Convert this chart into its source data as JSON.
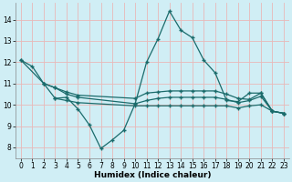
{
  "xlabel": "Humidex (Indice chaleur)",
  "background_color": "#d0eef5",
  "grid_color": "#e8b8b8",
  "line_color": "#1a6b6b",
  "xlim": [
    -0.5,
    23.5
  ],
  "ylim": [
    7.5,
    14.8
  ],
  "yticks": [
    8,
    9,
    10,
    11,
    12,
    13,
    14
  ],
  "xticks": [
    0,
    1,
    2,
    3,
    4,
    5,
    6,
    7,
    8,
    9,
    10,
    11,
    12,
    13,
    14,
    15,
    16,
    17,
    18,
    19,
    20,
    21,
    22,
    23
  ],
  "series": [
    {
      "x": [
        0,
        1,
        2,
        3,
        4,
        5,
        6,
        7,
        8,
        9,
        10,
        11,
        12,
        13,
        14,
        15,
        16,
        17,
        18,
        19,
        20,
        21,
        22,
        23
      ],
      "y": [
        12.1,
        11.8,
        11.0,
        10.3,
        10.35,
        9.8,
        9.05,
        7.95,
        8.35,
        8.8,
        10.05,
        12.0,
        13.1,
        14.4,
        13.5,
        13.15,
        12.1,
        11.5,
        10.2,
        10.15,
        10.55,
        10.55,
        9.7,
        9.6
      ]
    },
    {
      "x": [
        0,
        2,
        3,
        4,
        5,
        10,
        11,
        12,
        13,
        14,
        15,
        16,
        17,
        18,
        19,
        20,
        21,
        22,
        23
      ],
      "y": [
        12.1,
        11.0,
        10.8,
        10.6,
        10.45,
        10.3,
        10.55,
        10.6,
        10.65,
        10.65,
        10.65,
        10.65,
        10.65,
        10.5,
        10.3,
        10.25,
        10.55,
        9.7,
        9.6
      ]
    },
    {
      "x": [
        2,
        3,
        4,
        5,
        10,
        11,
        12,
        13,
        14,
        15,
        16,
        17,
        18,
        19,
        20,
        21,
        22,
        23
      ],
      "y": [
        11.0,
        10.8,
        10.5,
        10.35,
        10.05,
        10.2,
        10.3,
        10.35,
        10.35,
        10.35,
        10.35,
        10.35,
        10.25,
        10.1,
        10.2,
        10.4,
        9.7,
        9.6
      ]
    },
    {
      "x": [
        3,
        4,
        5,
        10,
        11,
        12,
        13,
        14,
        15,
        16,
        17,
        18,
        19,
        20,
        21,
        22,
        23
      ],
      "y": [
        10.3,
        10.2,
        10.1,
        9.95,
        9.95,
        9.95,
        9.95,
        9.95,
        9.95,
        9.95,
        9.95,
        9.95,
        9.85,
        9.95,
        10.0,
        9.7,
        9.6
      ]
    }
  ]
}
